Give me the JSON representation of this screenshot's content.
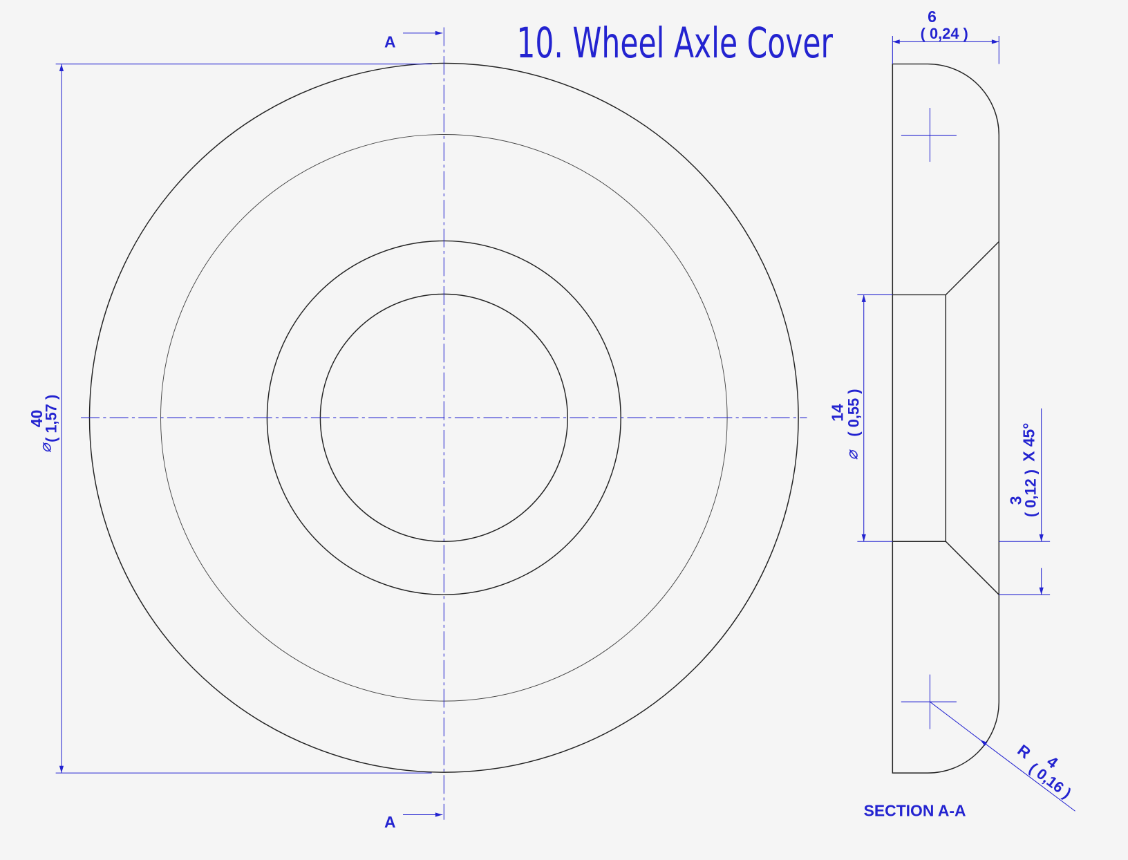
{
  "title": "10. Wheel Axle Cover",
  "section_marks": {
    "top": "A",
    "bottom": "A"
  },
  "section_label": "SECTION A-A",
  "dimensions": {
    "outer_diameter": {
      "symbol": "⌀",
      "value": "40",
      "inch": "( 1,57 )"
    },
    "thickness": {
      "value": "6",
      "inch": "( 0,24 )"
    },
    "bore_diameter": {
      "symbol": "⌀",
      "value": "14",
      "inch": "( 0,55 )"
    },
    "chamfer": {
      "value": "3",
      "inch": "( 0,12 )",
      "angle": "X 45°"
    },
    "radius": {
      "symbol": "R",
      "value": "4",
      "inch": "( 0,16 )"
    }
  }
}
